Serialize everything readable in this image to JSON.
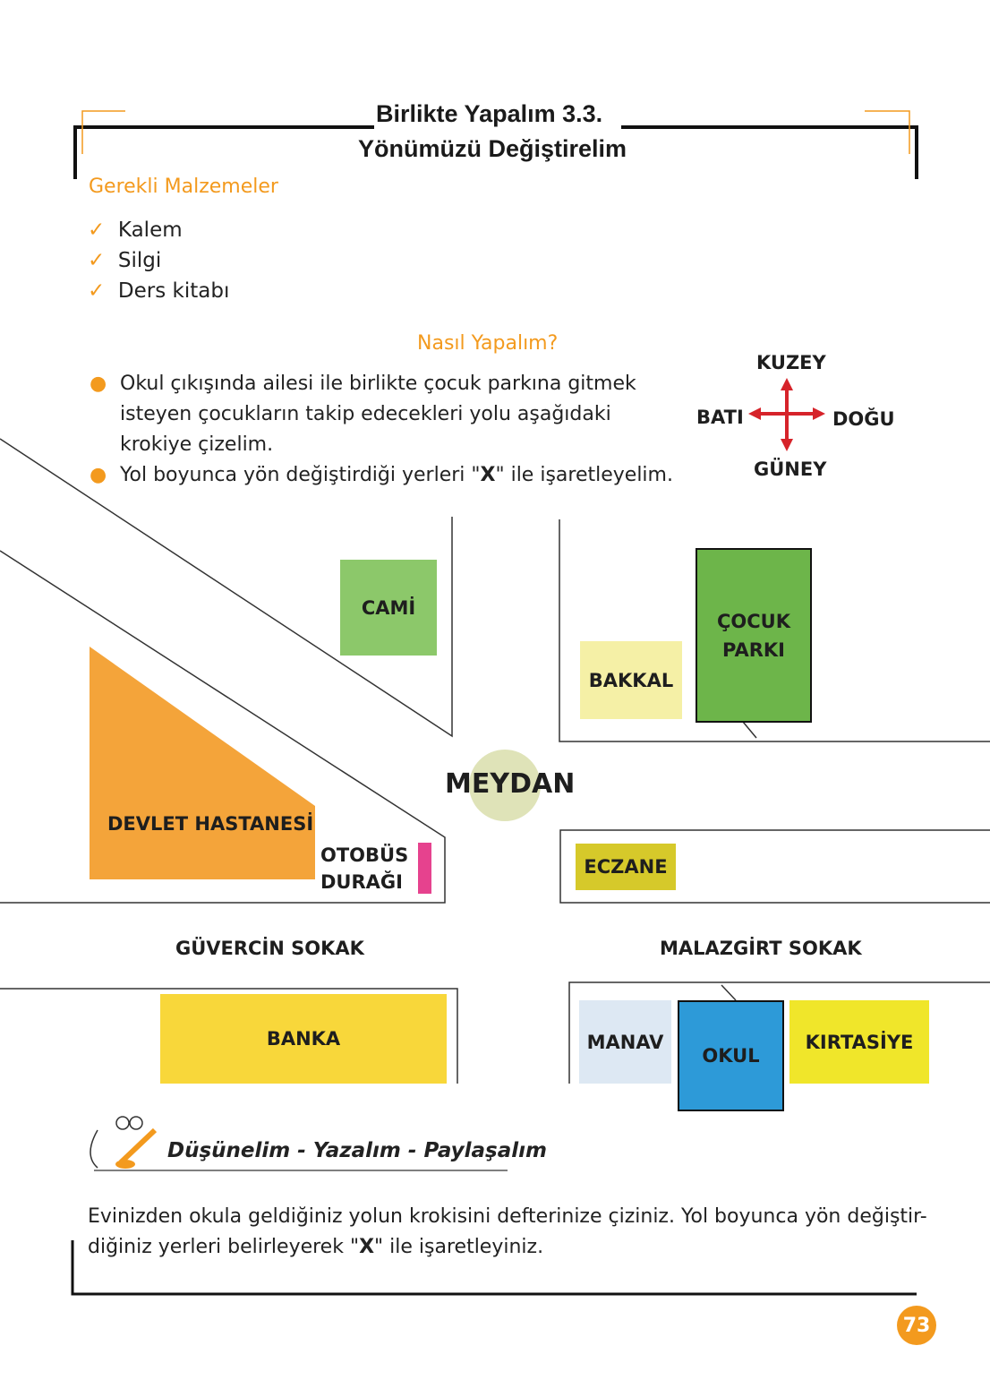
{
  "header": {
    "title": "Birlikte Yapalım 3.3.",
    "subtitle": "Yönümüzü Değiştirelim"
  },
  "materials": {
    "heading": "Gerekli Malzemeler",
    "items": [
      "Kalem",
      "Silgi",
      "Ders kitabı"
    ],
    "icon": "check-icon"
  },
  "instructions": {
    "heading": "Nasıl Yapalım?",
    "bullets": [
      [
        "Okul çıkışında ailesi ile birlikte çocuk parkına gitmek",
        "isteyen çocukların takip edecekleri yolu aşağıdaki",
        "krokiye çizelim."
      ],
      [
        "Yol boyunca yön değiştirdiği yerleri \"",
        "X",
        "\" ile işaretleyelim."
      ]
    ]
  },
  "compass": {
    "north": "KUZEY",
    "south": "GÜNEY",
    "east": "DOĞU",
    "west": "BATI",
    "color": "#d6232a"
  },
  "map": {
    "cami": "CAMİ",
    "cocuk_parki": [
      "ÇOCUK",
      "PARKI"
    ],
    "bakkal": "BAKKAL",
    "meydan": "MEYDAN",
    "hastane": "DEVLET HASTANESİ",
    "durak": [
      "OTOBÜS",
      "DURAĞI"
    ],
    "eczane": "ECZANE",
    "street_left": "GÜVERCİN SOKAK",
    "street_right": "MALAZGİRT SOKAK",
    "banka": "BANKA",
    "manav": "MANAV",
    "okul": "OKUL",
    "kirtasiye": "KIRTASİYE",
    "colors": {
      "cami": "#8cc86a",
      "park": "#6db54a",
      "bakkal": "#f5f0a6",
      "meydan": "#dfe3b8",
      "hastane": "#f4a43a",
      "durak": "#e6428e",
      "eczane": "#d6c92a",
      "banka": "#f8d73a",
      "manav": "#dde8f3",
      "okul": "#2d9ad8",
      "kirtasiye": "#f0e62a"
    }
  },
  "think": {
    "heading": "Düşünelim - Yazalım - Paylaşalım",
    "text1": "Evinizden okula geldiğiniz yolun krokisini defterinize çiziniz. Yol boyunca yön değiştir-",
    "text2a": "diğiniz yerleri belirleyerek \"",
    "text2b": "X",
    "text2c": "\" ile işaretleyiniz."
  },
  "page_number": "73"
}
